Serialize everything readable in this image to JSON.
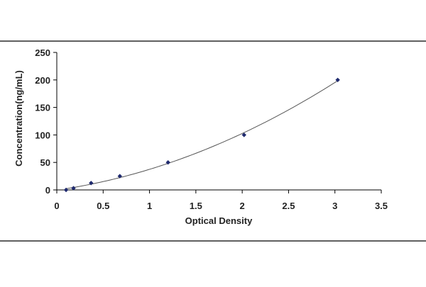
{
  "chart_data": {
    "type": "scatter",
    "title": "",
    "xlabel": "Optical Density",
    "ylabel": "Concentration(ng/mL)",
    "xlim": [
      0,
      3.5
    ],
    "ylim": [
      0,
      250
    ],
    "x_ticks": [
      "0",
      "0.5",
      "1",
      "1.5",
      "2",
      "2.5",
      "3",
      "3.5"
    ],
    "y_ticks": [
      "0",
      "50",
      "100",
      "150",
      "200",
      "250"
    ],
    "grid": false,
    "legend": "none",
    "series": [
      {
        "points": [
          {
            "x": 0.1,
            "y": 0
          },
          {
            "x": 0.18,
            "y": 3.1
          },
          {
            "x": 0.37,
            "y": 12.5
          },
          {
            "x": 0.68,
            "y": 25
          },
          {
            "x": 1.2,
            "y": 50
          },
          {
            "x": 2.02,
            "y": 100
          },
          {
            "x": 3.03,
            "y": 200
          }
        ],
        "trendline": "polynomial",
        "marker_color": "#1f2a6e",
        "line_color": "#555555"
      }
    ]
  }
}
